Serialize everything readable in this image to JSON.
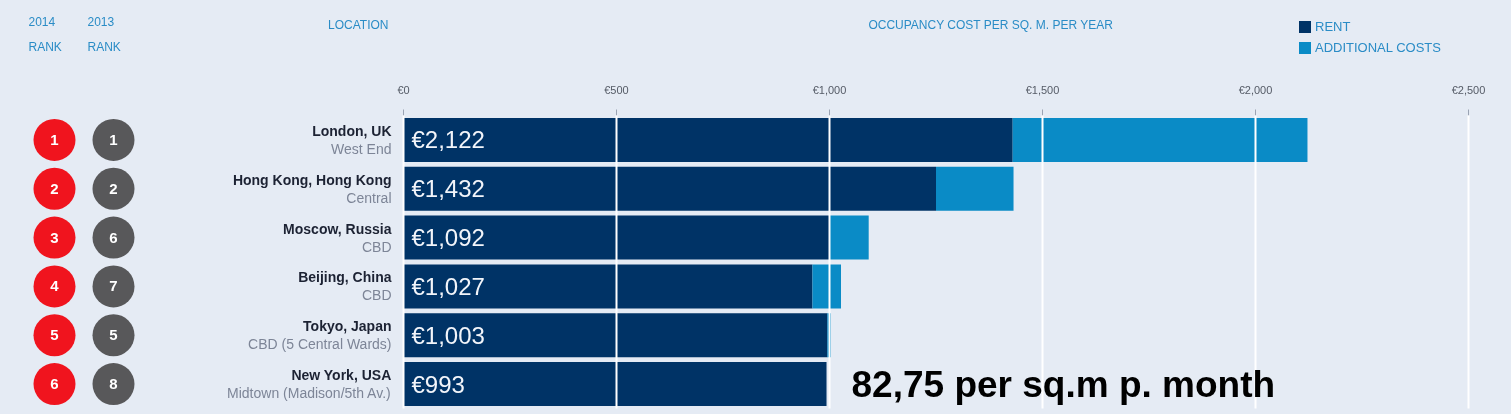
{
  "chart_data": [
    {
      "type": "other",
      "categories": [
        "2014\nRANK",
        "2013\nRANK"
      ],
      "series": [
        {
          "colors": [
            "#f0141e",
            "#58585a"
          ],
          "values": [
            1,
            1
          ]
        },
        {
          "colors": [
            "#f0141e",
            "#58585a"
          ],
          "values": [
            2,
            2
          ]
        },
        {
          "colors": [
            "#f0141e",
            "#58585a"
          ],
          "values": [
            3,
            6
          ]
        },
        {
          "colors": [
            "#f0141e",
            "#58585a"
          ],
          "values": [
            4,
            7
          ]
        },
        {
          "colors": [
            "#f0141e",
            "#58585a"
          ],
          "values": [
            5,
            5
          ]
        },
        {
          "colors": [
            "#f0141e",
            "#58585a"
          ],
          "values": [
            6,
            8
          ]
        }
      ],
      "data_labels": true
    },
    {
      "type": "bar",
      "orientation": "horizontal",
      "stacked": true,
      "xlabel": "OCCUPANCY COST PER SQ. M. PER YEAR",
      "ylabel": "LOCATION",
      "categories": [
        "London, UK\nWest End",
        "Hong Kong, Hong Kong\nCentral",
        "Moscow, Russia\nCBD",
        "Beijing, China\nCBD",
        "Tokyo, Japan\nCBD (5 Central Wards)",
        "New York, USA\nMidtown (Madison/5th Av.)"
      ],
      "series": [
        {
          "name": "RENT",
          "color": "#003366",
          "values": [
            1430,
            1250,
            1000,
            960,
            995,
            993
          ]
        },
        {
          "name": "ADDITIONAL COSTS",
          "color": "#0a8bc6",
          "values": [
            692,
            182,
            92,
            67,
            8,
            0
          ]
        }
      ],
      "totals": [
        "€2,122",
        "€1,432",
        "€1,092",
        "€1,027",
        "€1,003",
        "€993"
      ],
      "xlim": [
        0,
        2500
      ],
      "xticks": [
        {
          "value": 0,
          "label": "€0"
        },
        {
          "value": 500,
          "label": "€500"
        },
        {
          "value": 1000,
          "label": "€1,000"
        },
        {
          "value": 1500,
          "label": "€1,500"
        },
        {
          "value": 2000,
          "label": "€2,000"
        },
        {
          "value": 2500,
          "label": "€2,500"
        }
      ],
      "grid": "x",
      "legend": "top right",
      "annotations": [
        "82,75 per sq.m p. month"
      ]
    }
  ]
}
